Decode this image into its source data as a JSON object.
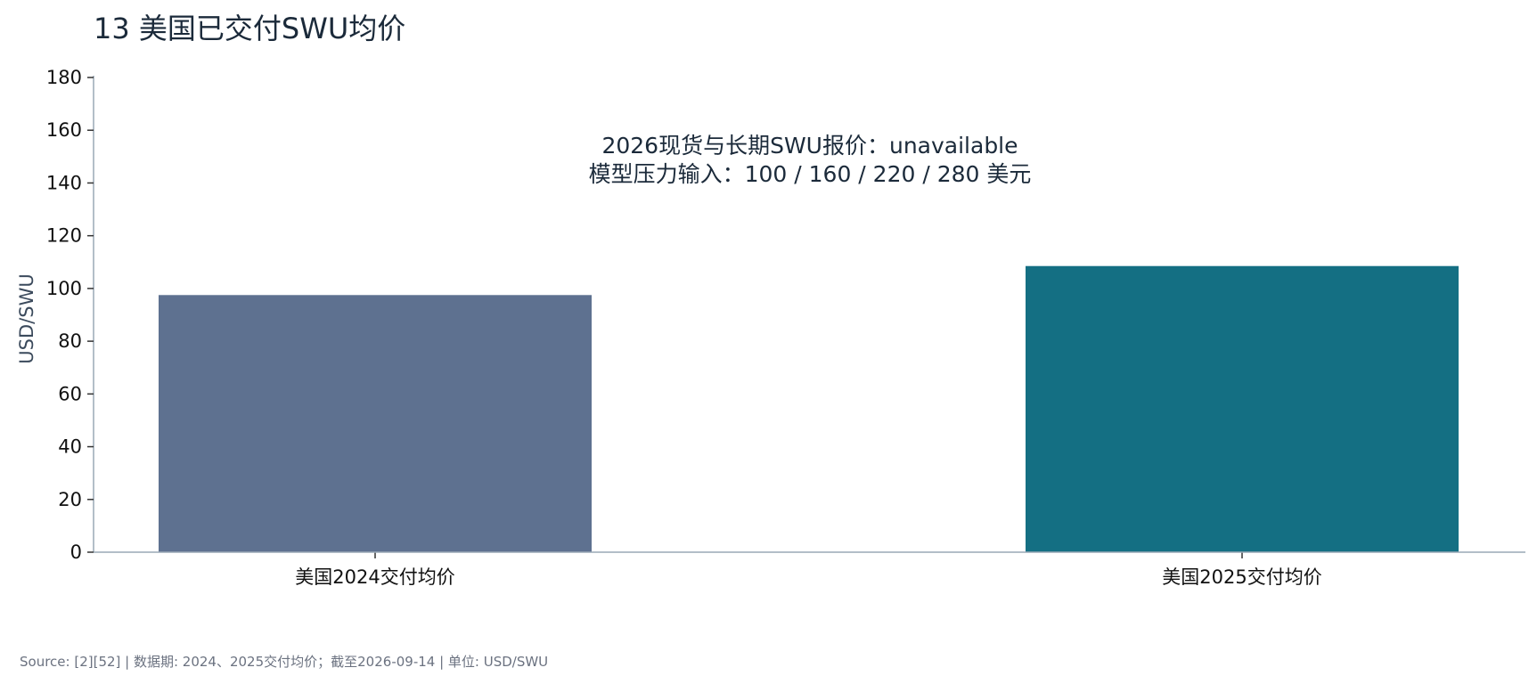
{
  "chart_data": {
    "type": "bar",
    "title": "13  美国已交付SWU均价",
    "categories": [
      "美国2024交付均价",
      "美国2025交付均价"
    ],
    "values": [
      97.5,
      108.5
    ],
    "xlabel": "",
    "ylabel": "USD/SWU",
    "ylim": [
      0,
      180
    ],
    "yticks": [
      0,
      20,
      40,
      60,
      80,
      100,
      120,
      140,
      160,
      180
    ],
    "bar_colors": [
      "#5e7190",
      "#146f83"
    ],
    "annotation": [
      "2026现货与长期SWU报价：unavailable",
      "模型压力输入：100 / 160 / 220 / 280 美元"
    ],
    "grid": false,
    "legend": "none",
    "source": "Source: [2][52] | 数据期: 2024、2025交付均价；截至2026-09-14 | 单位: USD/SWU"
  },
  "colors": {
    "axis": "#9aa8b6",
    "title": "#1b2a3a",
    "source": "#6b7280"
  }
}
